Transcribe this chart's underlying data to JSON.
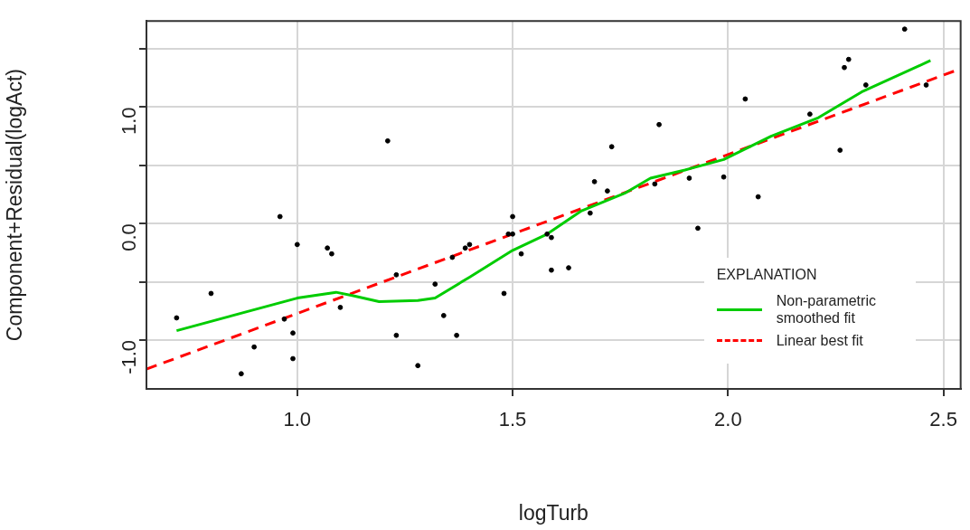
{
  "chart_data": {
    "type": "scatter",
    "xlabel": "logTurb",
    "ylabel": "Component+Residual(logAct)",
    "legend_title": "EXPLANATION",
    "legend": "bottom right",
    "grid": true,
    "xlim": [
      0.65,
      2.54
    ],
    "ylim": [
      -1.42,
      1.74
    ],
    "xticks": [
      {
        "value": 1.0,
        "label": "1.0"
      },
      {
        "value": 1.5,
        "label": "1.5"
      },
      {
        "value": 2.0,
        "label": "2.0"
      },
      {
        "value": 2.5,
        "label": "2.5"
      }
    ],
    "yticks": [
      {
        "value": -1.0,
        "label": "-1.0"
      },
      {
        "value": -0.5,
        "label": null
      },
      {
        "value": 0.0,
        "label": "0.0"
      },
      {
        "value": 0.5,
        "label": null
      },
      {
        "value": 1.0,
        "label": "1.0"
      },
      {
        "value": 1.5,
        "label": null
      }
    ],
    "series": [
      {
        "type": "scatter",
        "marker": "circle",
        "color": "#000000",
        "x": [
          1.21,
          0.96,
          1.0,
          1.07,
          1.08,
          1.23,
          0.8,
          1.1,
          0.72,
          0.97,
          0.99,
          1.23,
          0.9,
          0.99,
          1.28,
          0.87,
          1.84,
          1.73,
          1.69,
          1.72,
          1.68,
          1.5,
          1.49,
          1.5,
          1.58,
          1.59,
          1.39,
          1.4,
          1.36,
          1.52,
          1.59,
          1.63,
          1.32,
          1.48,
          1.34,
          1.37,
          1.83,
          1.91,
          2.41,
          2.28,
          2.27,
          2.32,
          2.46,
          2.04,
          2.19,
          2.26,
          1.99,
          2.07,
          1.93
        ],
        "values": [
          0.71,
          0.06,
          -0.18,
          -0.21,
          -0.26,
          -0.44,
          -0.6,
          -0.72,
          -0.81,
          -0.82,
          -0.94,
          -0.96,
          -1.06,
          -1.16,
          -1.22,
          -1.29,
          0.85,
          0.66,
          0.36,
          0.28,
          0.09,
          0.06,
          -0.09,
          -0.09,
          -0.09,
          -0.12,
          -0.21,
          -0.18,
          -0.29,
          -0.26,
          -0.4,
          -0.38,
          -0.52,
          -0.6,
          -0.79,
          -0.96,
          0.34,
          0.39,
          1.67,
          1.41,
          1.34,
          1.19,
          1.19,
          1.07,
          0.94,
          0.63,
          0.4,
          0.23,
          -0.04
        ]
      },
      {
        "type": "line",
        "name": "Non-parametric smoothed fit",
        "color": "#00cc00",
        "marker": "none",
        "line_style": "solid",
        "x": [
          0.72,
          1.0,
          1.09,
          1.13,
          1.19,
          1.28,
          1.32,
          1.4,
          1.5,
          1.58,
          1.66,
          1.76,
          1.82,
          1.9,
          1.99,
          2.1,
          2.21,
          2.31,
          2.47
        ],
        "values": [
          -0.92,
          -0.64,
          -0.59,
          -0.62,
          -0.67,
          -0.66,
          -0.64,
          -0.46,
          -0.23,
          -0.09,
          0.11,
          0.26,
          0.39,
          0.46,
          0.55,
          0.75,
          0.91,
          1.13,
          1.4
        ]
      },
      {
        "type": "line",
        "name": "Linear best fit",
        "color": "#ff0000",
        "marker": "none",
        "line_style": "dashed",
        "x": [
          0.65,
          2.54
        ],
        "values": [
          -1.25,
          1.33
        ]
      }
    ]
  }
}
